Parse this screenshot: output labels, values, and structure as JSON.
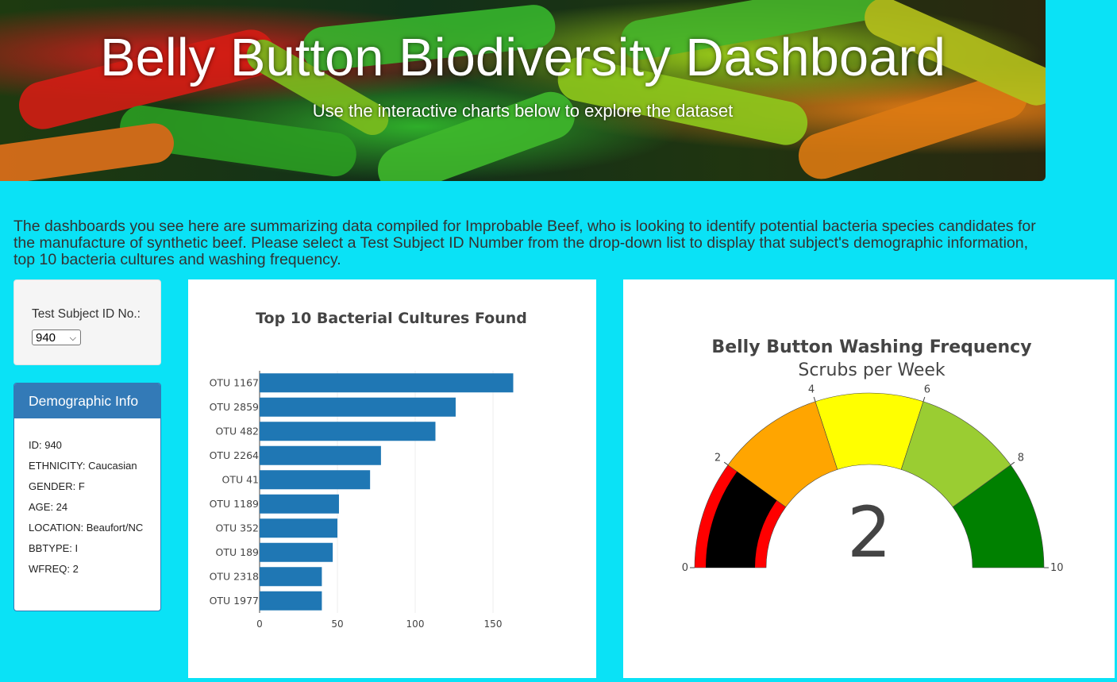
{
  "header": {
    "title": "Belly Button Biodiversity Dashboard",
    "subtitle": "Use the interactive charts below to explore the dataset"
  },
  "intro": "The dashboards you see here are summarizing data compiled for Improbable Beef, who is looking to identify potential bacteria species candidates for the manufacture of synthetic beef. Please select a Test Subject ID Number from the drop-down list to display that subject's demographic information, top 10 bacteria cultures and washing frequency.",
  "selector": {
    "label": "Test Subject ID No.:",
    "value": "940"
  },
  "demographic": {
    "title": "Demographic Info",
    "rows": [
      "ID: 940",
      "ETHNICITY: Caucasian",
      "GENDER: F",
      "AGE: 24",
      "LOCATION: Beaufort/NC",
      "BBTYPE: I",
      "WFREQ: 2"
    ]
  },
  "chart_data": [
    {
      "type": "bar",
      "orientation": "horizontal",
      "title": "Top 10 Bacterial Cultures Found",
      "categories": [
        "OTU 1167",
        "OTU 2859",
        "OTU 482",
        "OTU 2264",
        "OTU 41",
        "OTU 1189",
        "OTU 352",
        "OTU 189",
        "OTU 2318",
        "OTU 1977"
      ],
      "values": [
        163,
        126,
        113,
        78,
        71,
        51,
        50,
        47,
        40,
        40
      ],
      "xticks": [
        "0",
        "50",
        "100",
        "150"
      ],
      "xlim": [
        0,
        165
      ],
      "color": "#1f77b4",
      "grid": true
    },
    {
      "type": "gauge",
      "title": "Belly Button Washing Frequency",
      "subtitle": "Scrubs per Week",
      "value": 2,
      "value_label": "2",
      "range": [
        0,
        10
      ],
      "ticks": [
        "0",
        "2",
        "4",
        "6",
        "8",
        "10"
      ],
      "steps": [
        {
          "range": [
            0,
            2
          ],
          "color": "#ff0000"
        },
        {
          "range": [
            2,
            4
          ],
          "color": "#ffa500"
        },
        {
          "range": [
            4,
            6
          ],
          "color": "#ffff00"
        },
        {
          "range": [
            6,
            8
          ],
          "color": "#9acd32"
        },
        {
          "range": [
            8,
            10
          ],
          "color": "#008000"
        }
      ],
      "bar_color": "#000000"
    }
  ]
}
